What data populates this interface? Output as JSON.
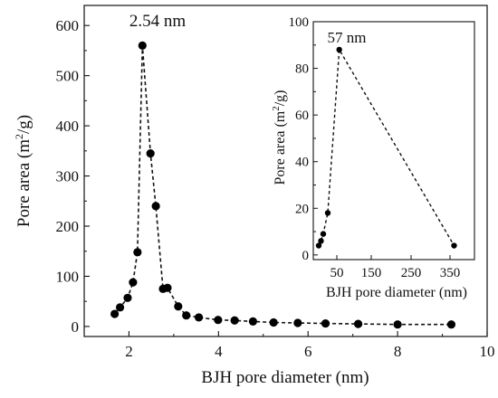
{
  "chart_data": [
    {
      "type": "line",
      "xlabel": "BJH pore diameter (nm)",
      "ylabel": "Pore area (m",
      "ylabel_sup": "2",
      "ylabel_tail": "/g)",
      "xlim": [
        1,
        10
      ],
      "ylim": [
        -20,
        640
      ],
      "xticks": [
        2,
        4,
        6,
        8,
        10
      ],
      "yticks": [
        0,
        100,
        200,
        300,
        400,
        500,
        600
      ],
      "annotation": "2.54 nm",
      "series": [
        {
          "x": [
            1.68,
            1.8,
            1.97,
            2.09,
            2.19,
            2.3,
            2.48,
            2.6,
            2.76,
            2.86,
            3.1,
            3.28,
            3.56,
            3.99,
            4.36,
            4.77,
            5.23,
            5.77,
            6.39,
            7.12,
            8.0,
            9.2
          ],
          "y": [
            25,
            38,
            57,
            88,
            148,
            560,
            345,
            240,
            75,
            77,
            40,
            22,
            18,
            13,
            12,
            10,
            8,
            7,
            6,
            5,
            4,
            4
          ]
        }
      ]
    },
    {
      "type": "line",
      "xlabel": "BJH pore diameter (nm)",
      "ylabel": "Pore area (m",
      "ylabel_sup": "2",
      "ylabel_tail": "/g)",
      "xticks": [
        50,
        150,
        250,
        350
      ],
      "xtick_labels": [
        "50",
        "150",
        "250",
        "350"
      ],
      "xtick_display": [
        "50",
        "150",
        "250",
        "350"
      ],
      "yticks": [
        0,
        20,
        40,
        60,
        80,
        100
      ],
      "ylim": [
        -2,
        100
      ],
      "annotation": "57 nm",
      "series": [
        {
          "x": [
            10,
            15,
            20,
            30,
            57,
            360
          ],
          "y": [
            4,
            6,
            9,
            18,
            88,
            4
          ]
        }
      ]
    }
  ]
}
